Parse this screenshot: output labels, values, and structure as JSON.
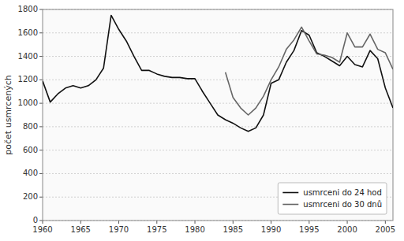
{
  "chart_data": {
    "type": "line",
    "ylabel": "počet usmrcených",
    "x": [
      1960,
      1961,
      1962,
      1963,
      1964,
      1965,
      1966,
      1967,
      1968,
      1969,
      1970,
      1971,
      1972,
      1973,
      1974,
      1975,
      1976,
      1977,
      1978,
      1979,
      1980,
      1981,
      1982,
      1983,
      1984,
      1985,
      1986,
      1987,
      1988,
      1989,
      1990,
      1991,
      1992,
      1993,
      1994,
      1995,
      1996,
      1997,
      1998,
      1999,
      2000,
      2001,
      2002,
      2003,
      2004,
      2005,
      2006
    ],
    "series": [
      {
        "name": "usmrceni do 24 hod",
        "color": "#111111",
        "values": [
          1190,
          1010,
          1080,
          1130,
          1150,
          1130,
          1150,
          1200,
          1300,
          1750,
          1630,
          1530,
          1400,
          1280,
          1280,
          1250,
          1230,
          1220,
          1220,
          1210,
          1210,
          1100,
          1000,
          900,
          860,
          830,
          790,
          760,
          790,
          900,
          1170,
          1200,
          1350,
          1450,
          1620,
          1580,
          1430,
          1400,
          1360,
          1320,
          1400,
          1330,
          1310,
          1450,
          1380,
          1130,
          960
        ]
      },
      {
        "name": "usmrceni do 30 dnů",
        "color": "#666666",
        "values": [
          null,
          null,
          null,
          null,
          null,
          null,
          null,
          null,
          null,
          null,
          null,
          null,
          null,
          null,
          null,
          null,
          null,
          null,
          null,
          null,
          null,
          null,
          null,
          null,
          1265,
          1050,
          960,
          900,
          960,
          1060,
          1200,
          1310,
          1460,
          1540,
          1650,
          1530,
          1420,
          1410,
          1390,
          1350,
          1600,
          1480,
          1480,
          1590,
          1460,
          1430,
          1290
        ]
      }
    ],
    "xlim": [
      1960,
      2006
    ],
    "xticks": [
      1960,
      1965,
      1970,
      1975,
      1980,
      1985,
      1990,
      1995,
      2000,
      2005
    ],
    "ylim": [
      0,
      1800
    ],
    "yticks": [
      0,
      200,
      400,
      600,
      800,
      1000,
      1200,
      1400,
      1600,
      1800
    ],
    "grid": true,
    "legend": "lower right"
  }
}
